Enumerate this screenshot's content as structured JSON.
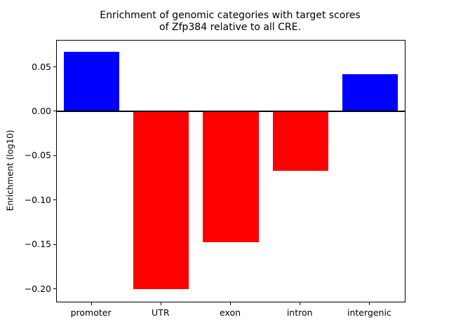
{
  "chart_data": {
    "type": "bar",
    "title": "Enrichment of genomic categories with target scores of Zfp384 relative to all CRE.",
    "title_lines": [
      "Enrichment of genomic categories with target scores",
      "of Zfp384 relative to all CRE."
    ],
    "xlabel": "",
    "ylabel": "Enrichment (log10)",
    "categories": [
      "promoter",
      "UTR",
      "exon",
      "intron",
      "intergenic"
    ],
    "values": [
      0.067,
      -0.2,
      -0.147,
      -0.067,
      0.042
    ],
    "bar_colors": [
      "#0000ff",
      "#ff0000",
      "#ff0000",
      "#ff0000",
      "#0000ff"
    ],
    "positive_color": "#0000ff",
    "negative_color": "#ff0000",
    "ylim": [
      -0.214,
      0.08
    ],
    "yticks": [
      0.05,
      0.0,
      -0.05,
      -0.1,
      -0.15,
      -0.2
    ],
    "ytick_labels": [
      "0.05",
      "0.00",
      "−0.05",
      "−0.10",
      "−0.15",
      "−0.20"
    ],
    "grid": false,
    "zero_line": true,
    "bar_width_fraction": 0.8
  }
}
